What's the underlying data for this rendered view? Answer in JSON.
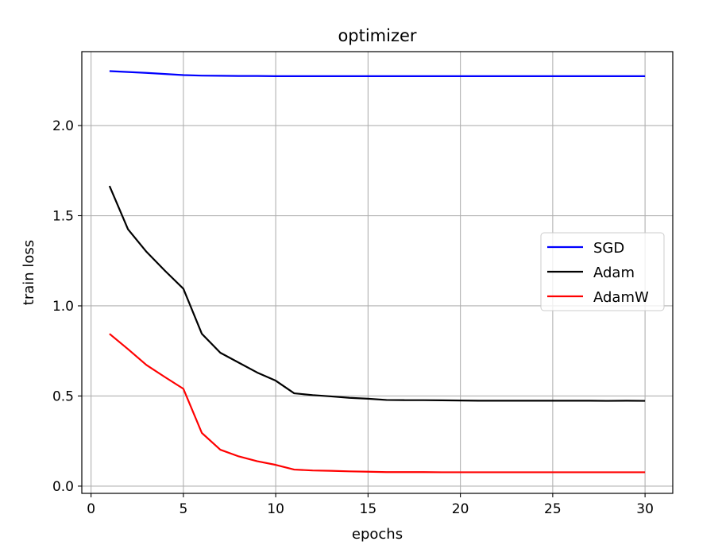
{
  "chart_data": {
    "type": "line",
    "title": "optimizer",
    "xlabel": "epochs",
    "ylabel": "train loss",
    "xlim": [
      -0.5,
      31.5
    ],
    "ylim": [
      -0.04,
      2.41
    ],
    "x_ticks": [
      0,
      5,
      10,
      15,
      20,
      25,
      30
    ],
    "x_tick_labels": [
      "0",
      "5",
      "10",
      "15",
      "20",
      "25",
      "30"
    ],
    "y_ticks": [
      0.0,
      0.5,
      1.0,
      1.5,
      2.0
    ],
    "y_tick_labels": [
      "0.0",
      "0.5",
      "1.0",
      "1.5",
      "2.0"
    ],
    "grid": true,
    "legend_position": "center-right",
    "x": [
      1,
      2,
      3,
      4,
      5,
      6,
      7,
      8,
      9,
      10,
      11,
      12,
      13,
      14,
      15,
      16,
      17,
      18,
      19,
      20,
      21,
      22,
      23,
      24,
      25,
      26,
      27,
      28,
      29,
      30
    ],
    "series": [
      {
        "name": "SGD",
        "color": "#0000ff",
        "values": [
          2.302,
          2.297,
          2.292,
          2.286,
          2.28,
          2.277,
          2.276,
          2.275,
          2.275,
          2.274,
          2.274,
          2.274,
          2.274,
          2.274,
          2.274,
          2.274,
          2.274,
          2.274,
          2.274,
          2.274,
          2.274,
          2.274,
          2.274,
          2.274,
          2.274,
          2.274,
          2.274,
          2.274,
          2.274,
          2.274
        ]
      },
      {
        "name": "Adam",
        "color": "#000000",
        "values": [
          1.665,
          1.425,
          1.3,
          1.195,
          1.095,
          0.845,
          0.74,
          0.685,
          0.63,
          0.585,
          0.515,
          0.505,
          0.498,
          0.49,
          0.485,
          0.478,
          0.477,
          0.477,
          0.476,
          0.475,
          0.474,
          0.474,
          0.474,
          0.474,
          0.474,
          0.474,
          0.474,
          0.473,
          0.474,
          0.473
        ]
      },
      {
        "name": "AdamW",
        "color": "#ff0000",
        "values": [
          0.845,
          0.76,
          0.672,
          0.605,
          0.54,
          0.295,
          0.202,
          0.165,
          0.138,
          0.118,
          0.092,
          0.087,
          0.085,
          0.082,
          0.08,
          0.078,
          0.078,
          0.078,
          0.077,
          0.077,
          0.077,
          0.077,
          0.077,
          0.077,
          0.077,
          0.077,
          0.077,
          0.077,
          0.077,
          0.077
        ]
      }
    ]
  }
}
